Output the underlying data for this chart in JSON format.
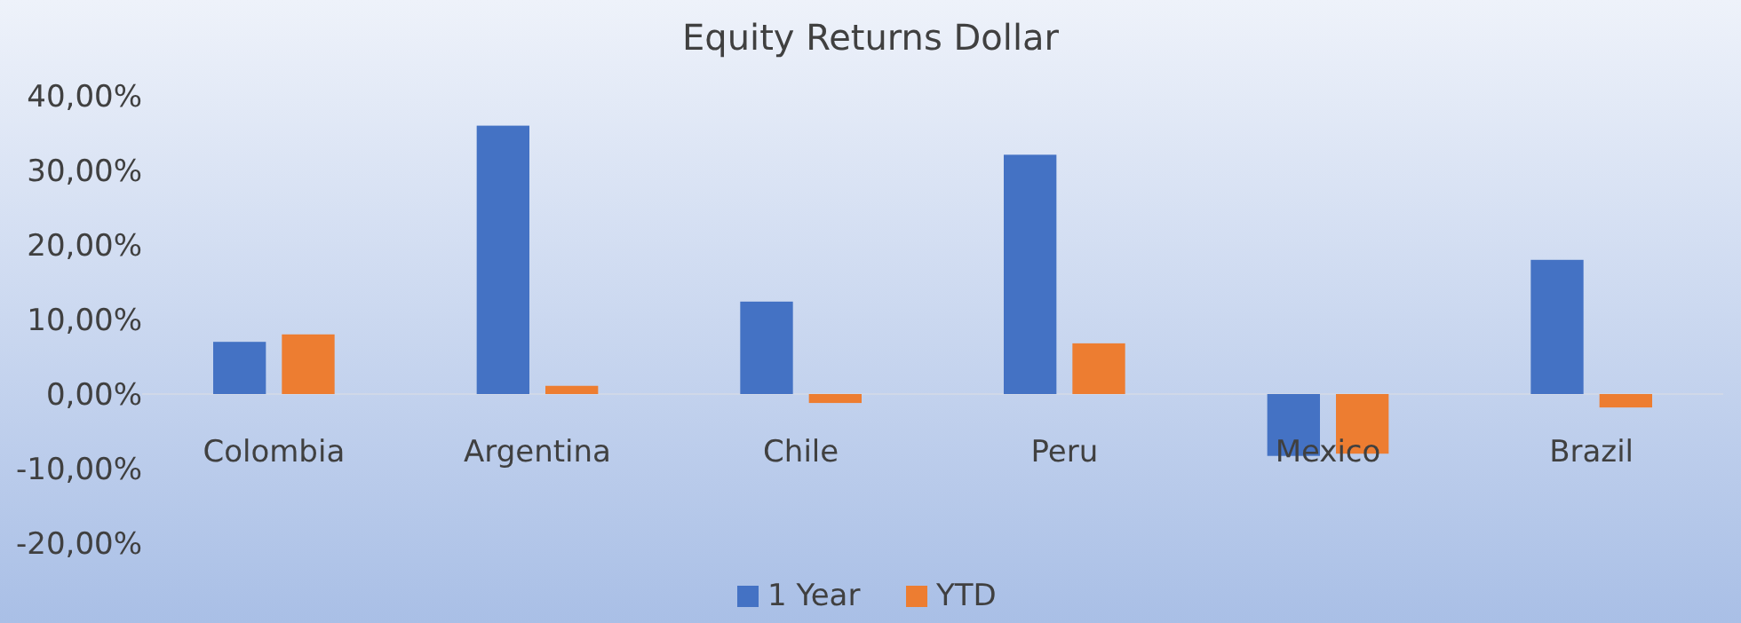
{
  "chart_data": {
    "type": "bar",
    "title": "Equity Returns Dollar",
    "categories": [
      "Colombia",
      "Argentina",
      "Chile",
      "Peru",
      "Mexico",
      "Brazil"
    ],
    "series": [
      {
        "name": "1 Year",
        "color": "#4472c4",
        "values": [
          7.0,
          36.0,
          12.4,
          32.1,
          -8.3,
          18.0
        ]
      },
      {
        "name": "YTD",
        "color": "#ed7d31",
        "values": [
          8.0,
          1.1,
          -1.2,
          6.8,
          -8.0,
          -1.8
        ]
      }
    ],
    "ylim": [
      -20,
      40
    ],
    "yticks": [
      {
        "value": -20,
        "label": "-20,00%"
      },
      {
        "value": -10,
        "label": "-10,00%"
      },
      {
        "value": 0,
        "label": "0,00%"
      },
      {
        "value": 10,
        "label": "10,00%"
      },
      {
        "value": 20,
        "label": "20,00%"
      },
      {
        "value": 30,
        "label": "30,00%"
      },
      {
        "value": 40,
        "label": "40,00%"
      }
    ],
    "grid": false,
    "legend": "bottom"
  }
}
